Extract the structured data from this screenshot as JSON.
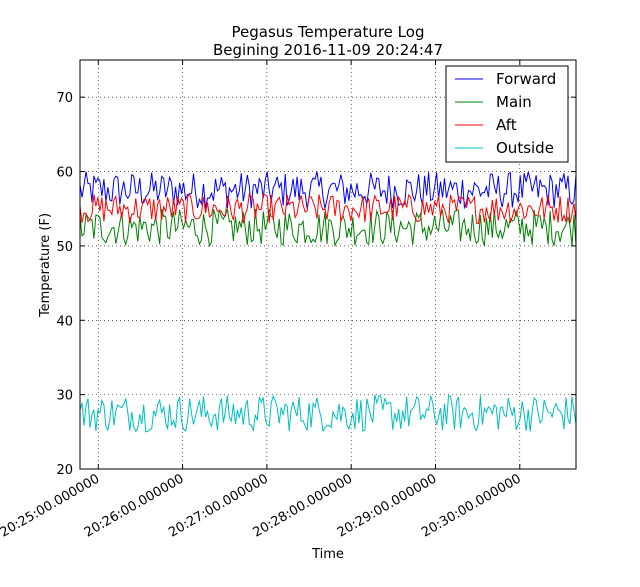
{
  "chart_data": {
    "type": "line",
    "title": "Pegasus Temperature Log",
    "subtitle": "Begining 2016-11-09 20:24:47",
    "xlabel": "Time",
    "ylabel": "Temperature (F)",
    "ylim": [
      20,
      75
    ],
    "xlim": [
      "20:24:47",
      "20:30:40"
    ],
    "yticks": [
      20,
      30,
      40,
      50,
      60,
      70
    ],
    "xticks": [
      "20:25:00.000000",
      "20:26:00.000000",
      "20:27:00.000000",
      "20:28:00.000000",
      "20:29:00.000000",
      "20:30:00.000000"
    ],
    "grid": true,
    "legend_placement": "top-right",
    "series": [
      {
        "name": "Forward",
        "color": "#0000ff",
        "min": 55,
        "max": 60
      },
      {
        "name": "Main",
        "color": "#008000",
        "min": 50,
        "max": 55
      },
      {
        "name": "Aft",
        "color": "#ff0000",
        "min": 53,
        "max": 57
      },
      {
        "name": "Outside",
        "color": "#00bfbf",
        "min": 25,
        "max": 30
      }
    ]
  }
}
